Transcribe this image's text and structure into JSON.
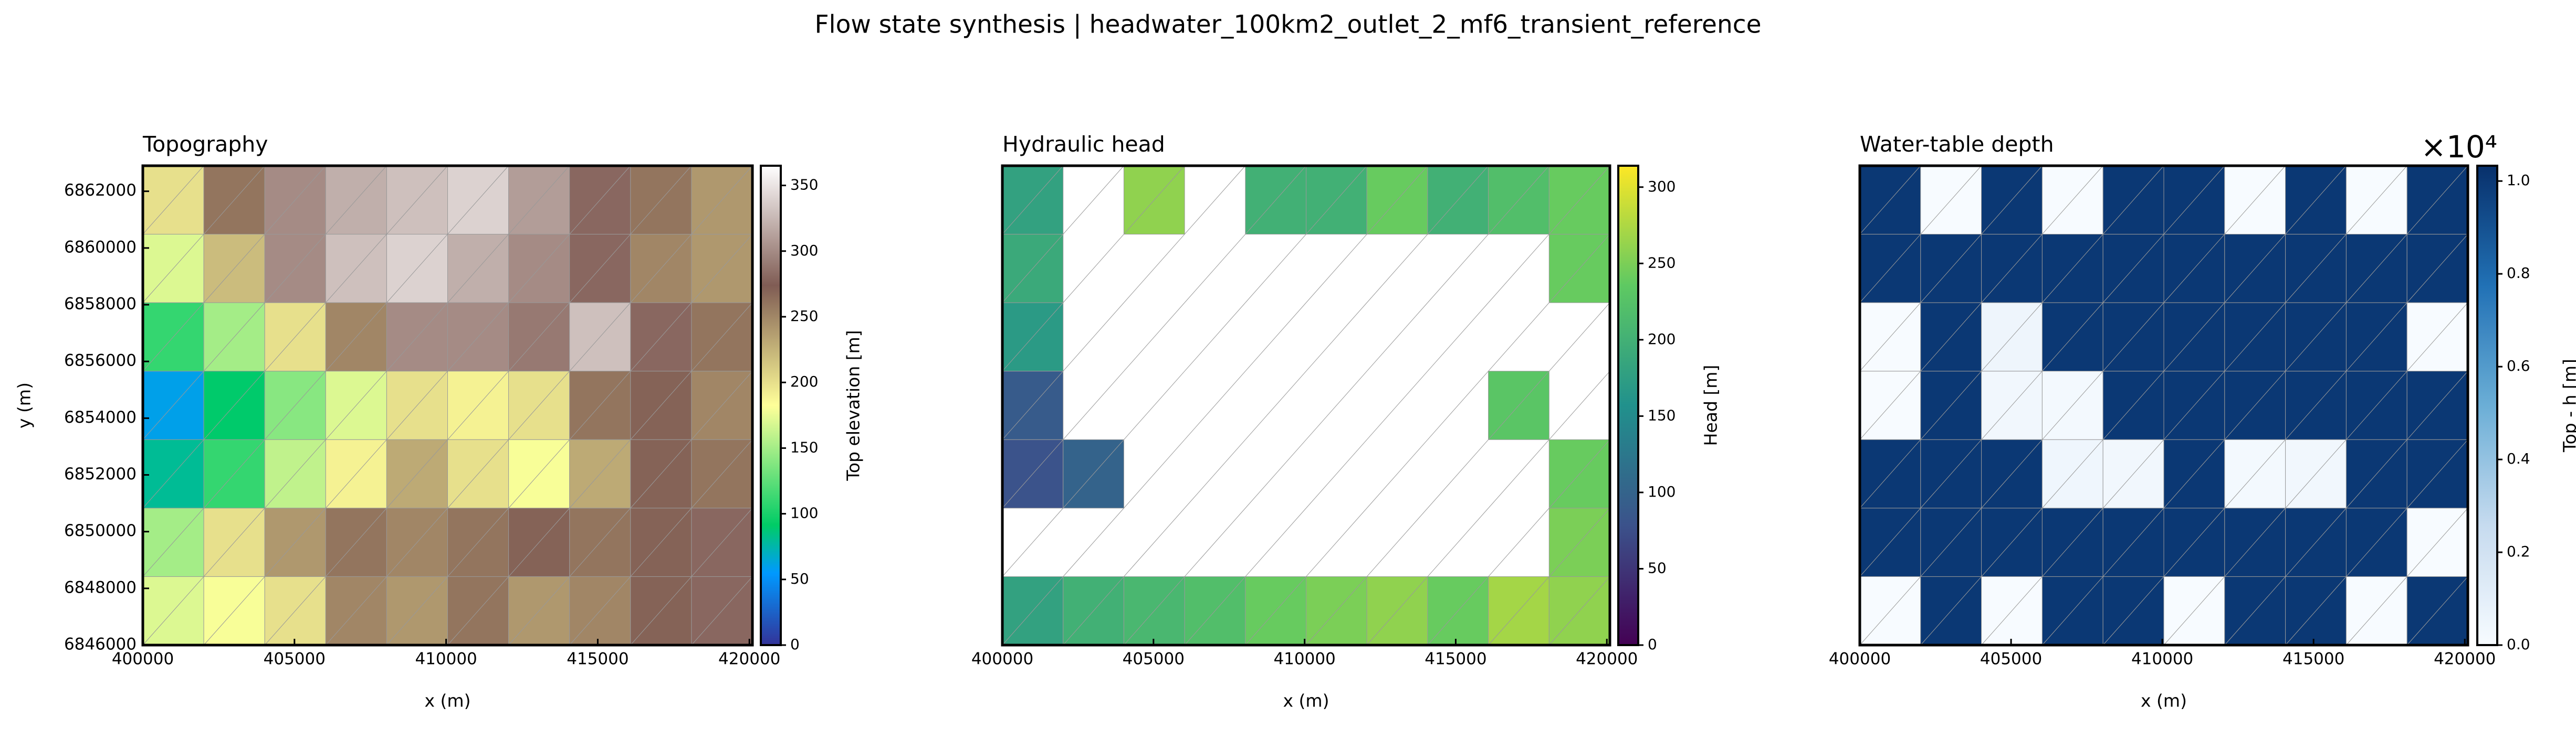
{
  "title": "Flow state synthesis | headwater_100km2_outlet_2_mf6_transient_reference",
  "chart_data": [
    {
      "type": "mesh",
      "title": "Topography",
      "xlabel": "x (m)",
      "ylabel": "y (m)",
      "colorbar_label": "Top elevation [m]",
      "cmap": "terrain",
      "xlim": [
        400000,
        420100
      ],
      "xticks": [
        400000,
        405000,
        410000,
        415000,
        420000
      ],
      "ylim": [
        6846000,
        6862900
      ],
      "yticks": [
        6846000,
        6848000,
        6850000,
        6852000,
        6854000,
        6856000,
        6858000,
        6860000,
        6862000
      ],
      "clim": [
        0,
        365
      ],
      "cticks": [
        0,
        50,
        100,
        150,
        200,
        250,
        300,
        350
      ],
      "values": [
        [
          200,
          260,
          300,
          320,
          330,
          340,
          310,
          280,
          260,
          240
        ],
        [
          170,
          220,
          300,
          330,
          340,
          320,
          300,
          280,
          250,
          240
        ],
        [
          110,
          150,
          200,
          250,
          300,
          300,
          290,
          330,
          280,
          260
        ],
        [
          60,
          90,
          140,
          170,
          200,
          190,
          200,
          260,
          270,
          250
        ],
        [
          80,
          110,
          160,
          190,
          230,
          200,
          180,
          230,
          270,
          260
        ],
        [
          150,
          200,
          240,
          260,
          250,
          260,
          270,
          260,
          270,
          280
        ],
        [
          170,
          180,
          200,
          250,
          240,
          260,
          240,
          250,
          270,
          280
        ]
      ]
    },
    {
      "type": "mesh",
      "title": "Hydraulic head",
      "xlabel": "x (m)",
      "colorbar_label": "Head [m]",
      "cmap": "viridis",
      "xlim": [
        400000,
        420100
      ],
      "xticks": [
        400000,
        405000,
        410000,
        415000,
        420000
      ],
      "ylim": [
        6846000,
        6862900
      ],
      "clim": [
        0,
        314
      ],
      "cticks": [
        0,
        50,
        100,
        150,
        200,
        250,
        300
      ],
      "values": [
        [
          180,
          null,
          260,
          null,
          200,
          200,
          240,
          200,
          220,
          240
        ],
        [
          190,
          null,
          null,
          null,
          null,
          null,
          null,
          null,
          null,
          240
        ],
        [
          170,
          null,
          null,
          null,
          null,
          null,
          null,
          null,
          null,
          null
        ],
        [
          90,
          null,
          null,
          null,
          null,
          null,
          null,
          null,
          230,
          null
        ],
        [
          80,
          100,
          null,
          null,
          null,
          null,
          null,
          null,
          null,
          240
        ],
        [
          null,
          null,
          null,
          null,
          null,
          null,
          null,
          null,
          null,
          250
        ],
        [
          180,
          200,
          210,
          220,
          240,
          250,
          260,
          240,
          270,
          260
        ]
      ]
    },
    {
      "type": "mesh",
      "title": "Water-table depth",
      "xlabel": "x (m)",
      "colorbar_label": "Top - h [m]",
      "cmap": "blues",
      "colorbar_offset": "×10⁴",
      "xlim": [
        400000,
        420100
      ],
      "xticks": [
        400000,
        405000,
        410000,
        415000,
        420000
      ],
      "ylim": [
        6846000,
        6862900
      ],
      "clim": [
        0,
        10330
      ],
      "cticks": [
        {
          "value": 0,
          "label": "0.0"
        },
        {
          "value": 2000,
          "label": "0.2"
        },
        {
          "value": 4000,
          "label": "0.4"
        },
        {
          "value": 6000,
          "label": "0.6"
        },
        {
          "value": 8000,
          "label": "0.8"
        },
        {
          "value": 10000,
          "label": "1.0"
        }
      ],
      "values": [
        [
          10000,
          0,
          10000,
          0,
          10000,
          10000,
          0,
          10000,
          0,
          10000
        ],
        [
          10000,
          10000,
          10000,
          10000,
          10000,
          10000,
          10000,
          10000,
          10000,
          10000
        ],
        [
          0,
          10000,
          500,
          10000,
          10000,
          10000,
          10000,
          10000,
          10000,
          0
        ],
        [
          0,
          10000,
          300,
          200,
          10000,
          10000,
          10000,
          10000,
          10000,
          10000
        ],
        [
          10000,
          10000,
          10000,
          400,
          300,
          10000,
          200,
          300,
          10000,
          10000
        ],
        [
          10000,
          10000,
          10000,
          10000,
          10000,
          10000,
          10000,
          10000,
          10000,
          0
        ],
        [
          0,
          10000,
          0,
          10000,
          10000,
          0,
          10000,
          10000,
          0,
          10000
        ]
      ]
    }
  ]
}
